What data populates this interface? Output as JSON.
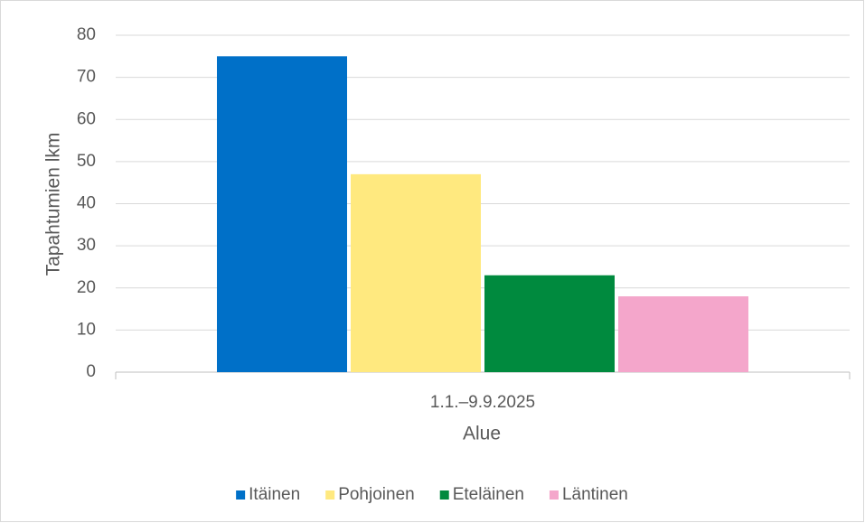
{
  "chart_data": {
    "type": "bar",
    "categories": [
      "1.1.–9.9.2025"
    ],
    "x_label": "Alue",
    "y_label": "Tapahtumien lkm",
    "series": [
      {
        "name": "Itäinen",
        "color": "#0070c8",
        "values": [
          75
        ]
      },
      {
        "name": "Pohjoinen",
        "color": "#ffe97f",
        "values": [
          47
        ]
      },
      {
        "name": "Eteläinen",
        "color": "#008a3e",
        "values": [
          23
        ]
      },
      {
        "name": "Läntinen",
        "color": "#f4a6cb",
        "values": [
          18
        ]
      }
    ],
    "ylim": [
      0,
      80
    ],
    "yticks": [
      0,
      10,
      20,
      30,
      40,
      50,
      60,
      70,
      80
    ],
    "grid": true,
    "legend": "bottom"
  }
}
